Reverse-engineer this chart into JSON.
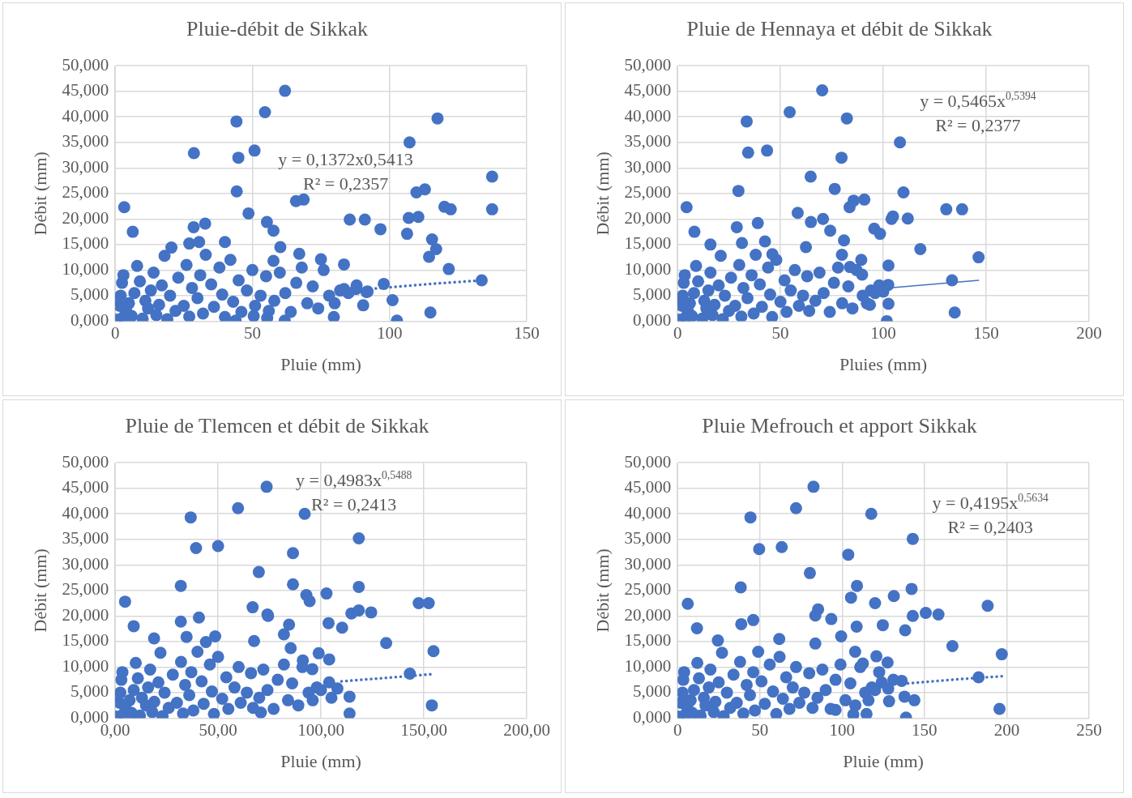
{
  "chart_data": [
    {
      "type": "scatter",
      "title": "Pluie-débit de Sikkak",
      "xlabel": "Pluie (mm)",
      "ylabel": "Débit (mm)",
      "xlim": [
        0,
        150
      ],
      "xticks": [
        0,
        50,
        100,
        150
      ],
      "ylim": [
        0,
        50
      ],
      "yticks": [
        {
          "value": 0,
          "label": "0,000"
        },
        {
          "value": 5,
          "label": "5,000"
        },
        {
          "value": 10,
          "label": "10,000"
        },
        {
          "value": 15,
          "label": "15,000"
        },
        {
          "value": 20,
          "label": "20,000"
        },
        {
          "value": 25,
          "label": "25,000"
        },
        {
          "value": 30,
          "label": "30,000"
        },
        {
          "value": 35,
          "label": "35,000"
        },
        {
          "value": 40,
          "label": "40,000"
        },
        {
          "value": 45,
          "label": "45,000"
        },
        {
          "value": 50,
          "label": "50,000"
        }
      ],
      "grid": true,
      "legend": false,
      "marker": "circle",
      "annotations": [
        "y = 0,1372x0,5413",
        "R² = 0,2357"
      ],
      "series": [
        {
          "color": "#4472c4",
          "x": [
            61.9,
            54.6,
            44.2,
            117.5,
            107.3,
            28.7,
            44.9,
            50.8,
            137.4,
            44.3,
            109.8,
            112.9,
            65.9,
            68.7,
            3.3,
            120,
            122.3,
            137.4,
            48.6,
            85.5,
            91,
            96.7,
            107,
            110.5,
            106.4,
            55.3,
            57.7,
            6.4,
            28.6,
            32.8,
            115.5,
            117,
            114.4,
            60.2,
            40,
            121.6,
            83.4,
            133.6,
            97.9,
            101.1,
            114.9,
            102.7,
            90.4,
            57.7,
            75,
            67.1,
            87.8,
            91.6,
            83.4,
            79.7,
            61.8,
            55.4,
            50.5,
            43.9,
            20.5,
            27,
            30.6,
            0.5,
            1.5,
            2,
            2.5,
            3,
            0.5,
            3,
            4,
            5,
            6,
            7,
            8,
            9,
            10,
            11,
            12,
            13,
            14,
            15,
            16,
            17,
            18,
            19,
            20,
            22,
            23,
            25,
            26,
            27,
            28,
            30,
            31,
            32,
            33,
            35,
            36,
            38,
            39,
            40,
            42,
            43,
            45,
            46,
            48,
            50,
            51,
            53,
            55,
            56,
            58,
            60,
            62,
            64,
            66,
            68,
            70,
            72,
            74,
            76,
            78,
            80,
            82,
            85,
            88,
            92
          ],
          "values": [
            45.1,
            40.9,
            39.1,
            39.7,
            35,
            32.9,
            32,
            33.4,
            28.3,
            25.4,
            25.2,
            25.8,
            23.5,
            23.8,
            22.3,
            22.4,
            21.9,
            21.9,
            21.1,
            19.9,
            19.9,
            18,
            20.2,
            20.4,
            17.1,
            19.4,
            17.7,
            17.5,
            18.4,
            19.1,
            16,
            14.1,
            12.6,
            14.5,
            15.5,
            10.2,
            11.1,
            8,
            7.3,
            4.1,
            1.7,
            0.1,
            3.1,
            11.8,
            12.1,
            13.2,
            6.3,
            5.7,
            6.3,
            0.8,
            0.1,
            0.6,
            1,
            0.1,
            14.4,
            15.2,
            15.5,
            0.3,
            3,
            5,
            7.5,
            9,
            4.2,
            0.8,
            2,
            3.5,
            1,
            5.5,
            10.8,
            7.8,
            0.5,
            4,
            2.5,
            6,
            9.5,
            1.2,
            3.2,
            7,
            12.8,
            0.4,
            5,
            2,
            8.5,
            3,
            11,
            0.9,
            6.5,
            4.5,
            9,
            1.5,
            13,
            7.2,
            2.8,
            10.5,
            5.2,
            0.8,
            12,
            3.8,
            8,
            1.8,
            6,
            10,
            3,
            5,
            8.8,
            2,
            4,
            9.5,
            5.5,
            1.8,
            7.5,
            10.5,
            3.5,
            6.8,
            2.5,
            10,
            5,
            3.5,
            6,
            5.5,
            7,
            5.8
          ]
        },
        {
          "type": "line",
          "color": "#4472c4",
          "marker": "none",
          "line_style": "dotted",
          "x": [
            95,
            115,
            134
          ],
          "values": [
            6.4,
            7.3,
            8.0
          ]
        }
      ]
    },
    {
      "type": "scatter",
      "title": "Pluie de Hennaya et débit de Sikkak",
      "xlabel": "Pluies (mm)",
      "ylabel": "Débit (mm)",
      "xlim": [
        0,
        200
      ],
      "xticks": [
        0,
        50,
        100,
        150,
        200
      ],
      "ylim": [
        0,
        50
      ],
      "yticks": [
        {
          "value": 0,
          "label": "0,000"
        },
        {
          "value": 5,
          "label": "5,000"
        },
        {
          "value": 10,
          "label": "10,000"
        },
        {
          "value": 15,
          "label": "15,000"
        },
        {
          "value": 20,
          "label": "20,000"
        },
        {
          "value": 25,
          "label": "25,000"
        },
        {
          "value": 30,
          "label": "30,000"
        },
        {
          "value": 35,
          "label": "35,000"
        },
        {
          "value": 40,
          "label": "40,000"
        },
        {
          "value": 45,
          "label": "45,000"
        },
        {
          "value": 50,
          "label": "50,000"
        }
      ],
      "grid": true,
      "legend": false,
      "marker": "circle",
      "annotations": [
        "y = 0,5465x$^{0,5394}$",
        "R² = 0,2377"
      ],
      "series": [
        {
          "color": "#4472c4",
          "x": [
            70.3,
            54.5,
            33.6,
            82.3,
            108.1,
            34.3,
            43.5,
            79.7,
            64.7,
            29.6,
            76.4,
            109.8,
            4.4,
            85.6,
            90.8,
            83.6,
            130.6,
            138.3,
            58.4,
            104.7,
            104,
            111.9,
            8.2,
            64.8,
            70.7,
            74.2,
            28.8,
            39,
            95.6,
            98.4,
            80.9,
            118,
            146.3,
            62.4,
            16,
            79.9,
            89.3,
            83.8,
            102.5,
            102.4,
            133.4,
            134.7,
            101.7,
            102.5,
            93.5,
            89.7,
            31.3,
            42.5,
            46.1,
            0.5,
            2,
            2.5,
            3,
            3.5,
            0.5,
            4,
            5,
            6,
            7,
            8,
            9,
            10,
            12,
            13,
            14,
            15,
            16,
            17,
            18,
            20,
            21,
            22,
            23,
            25,
            26,
            28,
            30,
            31,
            32,
            34,
            36,
            37,
            38,
            40,
            41,
            44,
            45,
            46,
            48,
            50,
            52,
            53,
            55,
            57,
            59,
            61,
            63,
            64,
            67,
            69,
            71,
            74,
            76,
            78,
            80,
            83,
            85,
            87,
            90,
            92,
            94,
            96,
            98,
            100
          ],
          "values": [
            45.2,
            40.9,
            39.1,
            39.7,
            35,
            33,
            33.4,
            32,
            28.3,
            25.5,
            25.9,
            25.2,
            22.3,
            23.6,
            23.8,
            22.3,
            21.9,
            21.9,
            21.2,
            20.5,
            20,
            20.1,
            17.5,
            19.4,
            20,
            17.7,
            18.4,
            19.2,
            18.1,
            17.1,
            15.8,
            14.1,
            12.5,
            14.5,
            15,
            13,
            12,
            10.6,
            10.9,
            7.1,
            8,
            1.7,
            0,
            3.4,
            3.2,
            9.1,
            15.3,
            15.6,
            13.1,
            0.3,
            3,
            5,
            7.5,
            9,
            4.2,
            0.8,
            2,
            3.5,
            1,
            5.5,
            10.8,
            7.8,
            0.5,
            4,
            2.5,
            6,
            9.5,
            1.2,
            3.2,
            7,
            12.8,
            0.4,
            5,
            2,
            8.5,
            3,
            11,
            0.9,
            6.5,
            4.5,
            9,
            1.5,
            13,
            7.2,
            2.8,
            10.5,
            5.2,
            0.8,
            12,
            3.8,
            8,
            1.8,
            6,
            10,
            3,
            5,
            8.8,
            2,
            4,
            9.5,
            5.5,
            1.8,
            7.5,
            10.5,
            3.5,
            6.8,
            2.5,
            10,
            5,
            3.5,
            6,
            5.5,
            7,
            5.8
          ]
        },
        {
          "type": "line",
          "color": "#4472c4",
          "marker": "none",
          "line_style": "solid",
          "x": [
            102.4,
            146.3
          ],
          "values": [
            6.5,
            8.0
          ]
        }
      ]
    },
    {
      "type": "scatter",
      "title": "Pluie de Tlemcen et débit de Sikkak",
      "xlabel": "Pluie (mm)",
      "ylabel": "Débit (mm)",
      "xlim": [
        0,
        200
      ],
      "xticks": [
        {
          "value": 0,
          "label": "0,00"
        },
        {
          "value": 50,
          "label": "50,00"
        },
        {
          "value": 100,
          "label": "100,00"
        },
        {
          "value": 150,
          "label": "150,00"
        },
        {
          "value": 200,
          "label": "200,00"
        }
      ],
      "ylim": [
        0,
        50
      ],
      "yticks": [
        {
          "value": 0,
          "label": "0,000"
        },
        {
          "value": 5,
          "label": "5,000"
        },
        {
          "value": 10,
          "label": "10,000"
        },
        {
          "value": 15,
          "label": "15,000"
        },
        {
          "value": 20,
          "label": "20,000"
        },
        {
          "value": 25,
          "label": "25,000"
        },
        {
          "value": 30,
          "label": "30,000"
        },
        {
          "value": 35,
          "label": "35,000"
        },
        {
          "value": 40,
          "label": "40,000"
        },
        {
          "value": 45,
          "label": "45,000"
        },
        {
          "value": 50,
          "label": "50,000"
        }
      ],
      "grid": true,
      "legend": false,
      "marker": "circle",
      "annotations": [
        "y = 0,4983x$^{0,5488}$",
        "R² = 0,2413"
      ],
      "series": [
        {
          "color": "#4472c4",
          "x": [
            73.6,
            59.7,
            36.7,
            92.1,
            118.4,
            39.3,
            50,
            86.4,
            69.8,
            31.9,
            86.4,
            118.4,
            4.8,
            92.9,
            94.5,
            102.7,
            147.5,
            152.4,
            66.8,
            114.8,
            118.4,
            124.4,
            9,
            74,
            74.3,
            84.5,
            31.9,
            40.7,
            103.7,
            110.3,
            82,
            131.7,
            154.7,
            67.5,
            18.9,
            85.3,
            91.2,
            98.9,
            104,
            95.8,
            143.2,
            153.9,
            113.9,
            113.9,
            105.1,
            70.8,
            48.6,
            34.7,
            44.1,
            0.5,
            2,
            2.5,
            3,
            3.5,
            0.5,
            4,
            5,
            7,
            8,
            9,
            10,
            11,
            12,
            13,
            15,
            16,
            17,
            18,
            19,
            21,
            22,
            23,
            24,
            26,
            28,
            30,
            32,
            33,
            34,
            36,
            37,
            38,
            40,
            42,
            43,
            46,
            47,
            48,
            50,
            52,
            54,
            55,
            58,
            60,
            61,
            64,
            66,
            67,
            70,
            72,
            74,
            77,
            79,
            82,
            84,
            86,
            89,
            91,
            94,
            96,
            98,
            100,
            104,
            108
          ],
          "values": [
            45.3,
            41.1,
            39.3,
            40,
            35.2,
            33.3,
            33.7,
            32.3,
            28.6,
            25.9,
            26.2,
            25.7,
            22.8,
            24.1,
            22.9,
            24.4,
            22.5,
            22.5,
            21.7,
            20.5,
            21.1,
            20.7,
            18,
            20.3,
            20,
            18.3,
            18.9,
            19.7,
            18.6,
            17.7,
            16.4,
            14.7,
            13.1,
            15.1,
            15.6,
            13.7,
            11.3,
            12.7,
            11.5,
            9.6,
            8.7,
            2.5,
            0.9,
            4.2,
            4,
            1.1,
            16,
            15.9,
            14.9,
            0.3,
            3,
            5,
            7.5,
            9,
            4.2,
            0.8,
            2,
            3.5,
            1,
            5.5,
            10.8,
            7.8,
            0.5,
            4,
            2.5,
            6,
            9.5,
            1.2,
            3.2,
            7,
            12.8,
            0.4,
            5,
            2,
            8.5,
            3,
            11,
            0.9,
            6.5,
            4.5,
            9,
            1.5,
            13,
            7.2,
            2.8,
            10.5,
            5.2,
            0.8,
            12,
            3.8,
            8,
            1.8,
            6,
            10,
            3,
            5,
            8.8,
            2,
            4,
            9.5,
            5.5,
            1.8,
            7.5,
            10.5,
            3.5,
            6.8,
            2.5,
            10,
            5,
            3.5,
            6,
            5.5,
            7,
            5.8
          ]
        },
        {
          "type": "line",
          "color": "#4472c4",
          "marker": "none",
          "line_style": "dotted",
          "x": [
            110,
            132,
            154
          ],
          "values": [
            7.2,
            7.9,
            8.6
          ]
        }
      ]
    },
    {
      "type": "scatter",
      "title": "Pluie Mefrouch et apport Sikkak",
      "xlabel": "Pluie (mm)",
      "ylabel": "Débit (mm)",
      "xlim": [
        0,
        250
      ],
      "xticks": [
        0,
        50,
        100,
        150,
        200,
        250
      ],
      "ylim": [
        0,
        50
      ],
      "yticks": [
        {
          "value": 0,
          "label": "0,000"
        },
        {
          "value": 5,
          "label": "5,000"
        },
        {
          "value": 10,
          "label": "10,000"
        },
        {
          "value": 15,
          "label": "15,000"
        },
        {
          "value": 20,
          "label": "20,000"
        },
        {
          "value": 25,
          "label": "25,000"
        },
        {
          "value": 30,
          "label": "30,000"
        },
        {
          "value": 35,
          "label": "35,000"
        },
        {
          "value": 40,
          "label": "40,000"
        },
        {
          "value": 45,
          "label": "45,000"
        },
        {
          "value": 50,
          "label": "50,000"
        }
      ],
      "grid": true,
      "legend": false,
      "marker": "circle",
      "annotations": [
        "y = 0,4195x$^{0,5634}$",
        "R² = 0,2403"
      ],
      "series": [
        {
          "color": "#4472c4",
          "x": [
            82.6,
            72,
            44.3,
            117.7,
            142.9,
            49.6,
            63.3,
            103.7,
            80.4,
            38.4,
            109,
            142.2,
            6.2,
            105.4,
            120,
            131.4,
            188.4,
            85.4,
            83.7,
            93.4,
            142.9,
            150.8,
            158.5,
            11.8,
            38.7,
            46,
            108.8,
            124.7,
            138.3,
            99.4,
            167,
            197,
            83.7,
            24.5,
            61.8,
            107.9,
            120.8,
            127.6,
            112.6,
            122.5,
            182.9,
            195.6,
            138.8,
            143.9,
            137.9,
            128.5,
            114.8,
            106.8,
            96,
            136.2,
            131.1,
            0.5,
            2,
            3,
            3.5,
            4,
            5,
            6,
            8,
            9,
            10,
            12,
            13,
            14,
            16,
            17,
            19,
            20,
            22,
            23,
            25,
            27,
            28,
            30,
            32,
            34,
            36,
            38,
            40,
            42,
            44,
            46,
            47,
            49,
            51,
            53,
            56,
            58,
            60,
            62,
            64,
            66,
            68,
            70,
            72,
            74,
            77,
            80,
            82,
            85,
            88,
            90,
            93,
            96,
            99,
            102,
            105,
            108,
            111,
            114,
            116,
            118,
            120,
            124,
            128
          ],
          "values": [
            45.3,
            41.1,
            39.3,
            40,
            35.1,
            33.1,
            33.5,
            32,
            28.4,
            25.6,
            25.9,
            25.3,
            22.4,
            23.6,
            22.5,
            23.9,
            22,
            21.3,
            20.1,
            19.4,
            20,
            20.6,
            20.3,
            17.6,
            18.4,
            19.2,
            17.9,
            18.2,
            17.2,
            16,
            14.1,
            12.5,
            14.6,
            15.2,
            15.5,
            13,
            12.1,
            10.9,
            10.7,
            9,
            8,
            1.8,
            0.1,
            3.5,
            4.2,
            3.3,
            0.8,
            0.7,
            1.6,
            7.3,
            7.5,
            0.3,
            3,
            5,
            7.5,
            9,
            0.8,
            2,
            3.5,
            1,
            5.5,
            10.8,
            7.8,
            0.5,
            4,
            2.5,
            6,
            9.5,
            1.2,
            3.2,
            7,
            12.8,
            0.4,
            5,
            2,
            8.5,
            3,
            11,
            0.9,
            6.5,
            4.5,
            9,
            1.5,
            13,
            7.2,
            2.8,
            10.5,
            5.2,
            0.8,
            12,
            3.8,
            8,
            1.8,
            6,
            10,
            3,
            5,
            8.8,
            2,
            4,
            9.5,
            5.5,
            1.8,
            7.5,
            10.5,
            3.5,
            6.8,
            2.5,
            10,
            5,
            3.5,
            6,
            5.5,
            7,
            5.8
          ]
        },
        {
          "type": "line",
          "color": "#4472c4",
          "marker": "none",
          "line_style": "dotted",
          "x": [
            140,
            170,
            197
          ],
          "values": [
            6.8,
            7.6,
            8.2
          ]
        }
      ]
    }
  ]
}
